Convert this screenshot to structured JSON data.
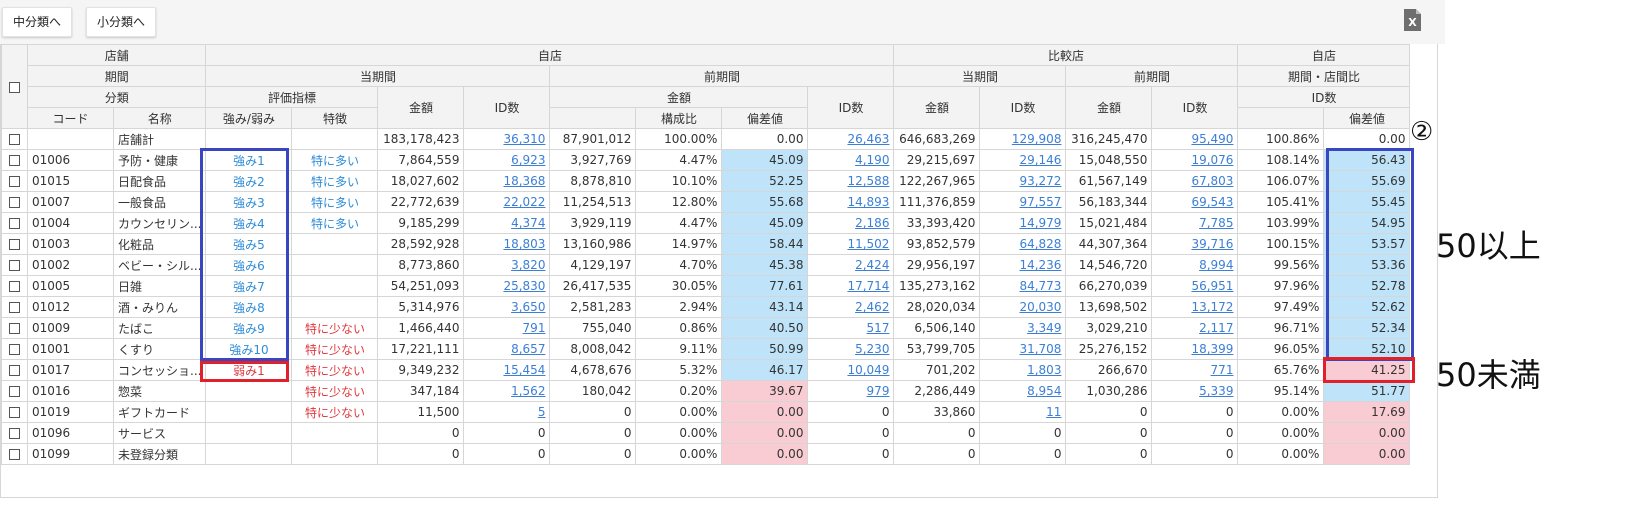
{
  "toolbar": {
    "mid_button": "中分類へ",
    "small_button": "小分類へ",
    "excel_icon_letter": "X"
  },
  "header": {
    "row1": {
      "store": "店舗",
      "own": "自店",
      "compare": "比較店",
      "own2": "自店"
    },
    "row2": {
      "period": "期間",
      "current": "当期間",
      "previous": "前期間",
      "cmp_current": "当期間",
      "cmp_previous": "前期間",
      "ratio": "期間・店間比"
    },
    "row3": {
      "category": "分類",
      "eval": "評価指標",
      "amount": "金額",
      "id_count": "ID数",
      "prev_amount": "金額",
      "prev_id": "ID数",
      "cmp_cur_amount": "金額",
      "cmp_cur_id": "ID数",
      "cmp_prev_amount": "金額",
      "cmp_prev_id": "ID数",
      "ratio_id": "ID数"
    },
    "row4": {
      "code": "コード",
      "name": "名称",
      "strength": "強み/弱み",
      "feature": "特徴",
      "composition": "構成比",
      "deviation": "偏差値",
      "ratio_dev": "偏差値"
    }
  },
  "total_row": {
    "name": "店舗計",
    "cur_amount": "183,178,423",
    "cur_id": "36,310",
    "prev_amount": "87,901,012",
    "prev_comp": "100.00%",
    "prev_dev": "0.00",
    "prev_id": "26,463",
    "cmp_cur_amount": "646,683,269",
    "cmp_cur_id": "129,908",
    "cmp_prev_amount": "316,245,470",
    "cmp_prev_id": "95,490",
    "ratio": "100.86%",
    "ratio_dev": "0.00"
  },
  "rows": [
    {
      "code": "01006",
      "name": "予防・健康",
      "sw": "強み1",
      "feat": "特に多い",
      "cur_amount": "7,864,559",
      "cur_id": "6,923",
      "prev_amount": "3,927,769",
      "prev_comp": "4.47%",
      "prev_dev": "45.09",
      "prev_id": "4,190",
      "cmp_cur_amount": "29,215,697",
      "cmp_cur_id": "29,146",
      "cmp_prev_amount": "15,048,550",
      "cmp_prev_id": "19,076",
      "ratio": "108.14%",
      "ratio_dev": "56.43"
    },
    {
      "code": "01015",
      "name": "日配食品",
      "sw": "強み2",
      "feat": "特に多い",
      "cur_amount": "18,027,602",
      "cur_id": "18,368",
      "prev_amount": "8,878,810",
      "prev_comp": "10.10%",
      "prev_dev": "52.25",
      "prev_id": "12,588",
      "cmp_cur_amount": "122,267,965",
      "cmp_cur_id": "93,272",
      "cmp_prev_amount": "61,567,149",
      "cmp_prev_id": "67,803",
      "ratio": "106.07%",
      "ratio_dev": "55.69"
    },
    {
      "code": "01007",
      "name": "一般食品",
      "sw": "強み3",
      "feat": "特に多い",
      "cur_amount": "22,772,639",
      "cur_id": "22,022",
      "prev_amount": "11,254,513",
      "prev_comp": "12.80%",
      "prev_dev": "55.68",
      "prev_id": "14,893",
      "cmp_cur_amount": "111,376,859",
      "cmp_cur_id": "97,557",
      "cmp_prev_amount": "56,183,344",
      "cmp_prev_id": "69,543",
      "ratio": "105.41%",
      "ratio_dev": "55.45"
    },
    {
      "code": "01004",
      "name": "カウンセリン...",
      "sw": "強み4",
      "feat": "特に多い",
      "cur_amount": "9,185,299",
      "cur_id": "4,374",
      "prev_amount": "3,929,119",
      "prev_comp": "4.47%",
      "prev_dev": "45.09",
      "prev_id": "2,186",
      "cmp_cur_amount": "33,393,420",
      "cmp_cur_id": "14,979",
      "cmp_prev_amount": "15,021,484",
      "cmp_prev_id": "7,785",
      "ratio": "103.99%",
      "ratio_dev": "54.95"
    },
    {
      "code": "01003",
      "name": "化粧品",
      "sw": "強み5",
      "feat": "",
      "cur_amount": "28,592,928",
      "cur_id": "18,803",
      "prev_amount": "13,160,986",
      "prev_comp": "14.97%",
      "prev_dev": "58.44",
      "prev_id": "11,502",
      "cmp_cur_amount": "93,852,579",
      "cmp_cur_id": "64,828",
      "cmp_prev_amount": "44,307,364",
      "cmp_prev_id": "39,716",
      "ratio": "100.15%",
      "ratio_dev": "53.57"
    },
    {
      "code": "01002",
      "name": "ベビー・シル...",
      "sw": "強み6",
      "feat": "",
      "cur_amount": "8,773,860",
      "cur_id": "3,820",
      "prev_amount": "4,129,197",
      "prev_comp": "4.70%",
      "prev_dev": "45.38",
      "prev_id": "2,424",
      "cmp_cur_amount": "29,956,197",
      "cmp_cur_id": "14,236",
      "cmp_prev_amount": "14,546,720",
      "cmp_prev_id": "8,994",
      "ratio": "99.56%",
      "ratio_dev": "53.36"
    },
    {
      "code": "01005",
      "name": "日雑",
      "sw": "強み7",
      "feat": "",
      "cur_amount": "54,251,093",
      "cur_id": "25,830",
      "prev_amount": "26,417,535",
      "prev_comp": "30.05%",
      "prev_dev": "77.61",
      "prev_id": "17,714",
      "cmp_cur_amount": "135,273,162",
      "cmp_cur_id": "84,773",
      "cmp_prev_amount": "66,270,039",
      "cmp_prev_id": "56,951",
      "ratio": "97.96%",
      "ratio_dev": "52.78"
    },
    {
      "code": "01012",
      "name": "酒・みりん",
      "sw": "強み8",
      "feat": "",
      "cur_amount": "5,314,976",
      "cur_id": "3,650",
      "prev_amount": "2,581,283",
      "prev_comp": "2.94%",
      "prev_dev": "43.14",
      "prev_id": "2,462",
      "cmp_cur_amount": "28,020,034",
      "cmp_cur_id": "20,030",
      "cmp_prev_amount": "13,698,502",
      "cmp_prev_id": "13,172",
      "ratio": "97.49%",
      "ratio_dev": "52.62"
    },
    {
      "code": "01009",
      "name": "たばこ",
      "sw": "強み9",
      "feat": "特に少ない",
      "cur_amount": "1,466,440",
      "cur_id": "791",
      "prev_amount": "755,040",
      "prev_comp": "0.86%",
      "prev_dev": "40.50",
      "prev_id": "517",
      "cmp_cur_amount": "6,506,140",
      "cmp_cur_id": "3,349",
      "cmp_prev_amount": "3,029,210",
      "cmp_prev_id": "2,117",
      "ratio": "96.71%",
      "ratio_dev": "52.34"
    },
    {
      "code": "01001",
      "name": "くすり",
      "sw": "強み10",
      "feat": "特に少ない",
      "cur_amount": "17,221,111",
      "cur_id": "8,657",
      "prev_amount": "8,008,042",
      "prev_comp": "9.11%",
      "prev_dev": "50.99",
      "prev_id": "5,230",
      "cmp_cur_amount": "53,799,705",
      "cmp_cur_id": "31,708",
      "cmp_prev_amount": "25,276,152",
      "cmp_prev_id": "18,399",
      "ratio": "96.05%",
      "ratio_dev": "52.10"
    },
    {
      "code": "01017",
      "name": "コンセッショ...",
      "sw": "弱み1",
      "feat": "特に少ない",
      "cur_amount": "9,349,232",
      "cur_id": "15,454",
      "prev_amount": "4,678,676",
      "prev_comp": "5.32%",
      "prev_dev": "46.17",
      "prev_id": "10,049",
      "cmp_cur_amount": "701,202",
      "cmp_cur_id": "1,803",
      "cmp_prev_amount": "266,670",
      "cmp_prev_id": "771",
      "ratio": "65.76%",
      "ratio_dev": "41.25"
    },
    {
      "code": "01016",
      "name": "惣菜",
      "sw": "",
      "feat": "特に少ない",
      "cur_amount": "347,184",
      "cur_id": "1,562",
      "prev_amount": "180,042",
      "prev_comp": "0.20%",
      "prev_dev": "39.67",
      "prev_id": "979",
      "cmp_cur_amount": "2,286,449",
      "cmp_cur_id": "8,954",
      "cmp_prev_amount": "1,030,286",
      "cmp_prev_id": "5,339",
      "ratio": "95.14%",
      "ratio_dev": "51.77"
    },
    {
      "code": "01019",
      "name": "ギフトカード",
      "sw": "",
      "feat": "特に少ない",
      "cur_amount": "11,500",
      "cur_id": "5",
      "prev_amount": "0",
      "prev_comp": "0.00%",
      "prev_dev": "0.00",
      "prev_id": "0",
      "cmp_cur_amount": "33,860",
      "cmp_cur_id": "11",
      "cmp_prev_amount": "0",
      "cmp_prev_id": "0",
      "ratio": "0.00%",
      "ratio_dev": "17.69"
    },
    {
      "code": "01096",
      "name": "サービス",
      "sw": "",
      "feat": "",
      "cur_amount": "0",
      "cur_id": "0",
      "prev_amount": "0",
      "prev_comp": "0.00%",
      "prev_dev": "0.00",
      "prev_id": "0",
      "cmp_cur_amount": "0",
      "cmp_cur_id": "0",
      "cmp_prev_amount": "0",
      "cmp_prev_id": "0",
      "ratio": "0.00%",
      "ratio_dev": "0.00"
    },
    {
      "code": "01099",
      "name": "未登録分類",
      "sw": "",
      "feat": "",
      "cur_amount": "0",
      "cur_id": "0",
      "prev_amount": "0",
      "prev_comp": "0.00%",
      "prev_dev": "0.00",
      "prev_id": "0",
      "cmp_cur_amount": "0",
      "cmp_cur_id": "0",
      "cmp_prev_amount": "0",
      "cmp_prev_id": "0",
      "ratio": "0.00%",
      "ratio_dev": "0.00"
    }
  ],
  "annotations": {
    "marker": "②",
    "above": "50以上",
    "below": "50未満"
  },
  "colors": {
    "link": "#3b7fd6",
    "strength": "#2f8cd8",
    "weakness": "#e0393e",
    "highlight_blue": "#bfe3f8",
    "highlight_pink": "#f9ccd3",
    "box_blue": "#3a45c0",
    "box_red": "#e0202a"
  }
}
